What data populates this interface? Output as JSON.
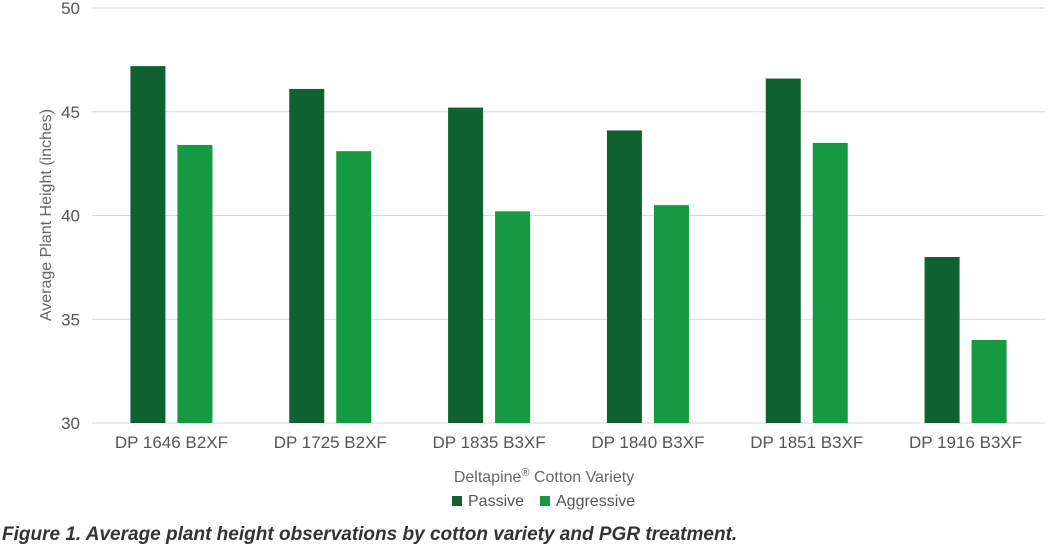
{
  "chart_data": {
    "type": "bar",
    "categories": [
      "DP 1646 B2XF",
      "DP 1725 B2XF",
      "DP 1835 B3XF",
      "DP 1840 B3XF",
      "DP 1851 B3XF",
      "DP 1916 B3XF"
    ],
    "series": [
      {
        "name": "Passive",
        "color": "#0f6230",
        "values": [
          47.2,
          46.1,
          45.2,
          44.1,
          46.6,
          38.0
        ]
      },
      {
        "name": "Aggressive",
        "color": "#159a41",
        "values": [
          43.4,
          43.1,
          40.2,
          40.5,
          43.5,
          34.0
        ]
      }
    ],
    "ylim": [
      30,
      50
    ],
    "yticks": [
      "30",
      "35",
      "40",
      "45",
      "50"
    ],
    "ylabel": "Average Plant Height (inches)",
    "xlabel": "Deltapine",
    "xlabel_sup": "®",
    "xlabel_rest": " Cotton Variety",
    "grid": true,
    "legend_position": "bottom"
  },
  "caption": "Figure 1. Average plant height observations by cotton variety and PGR treatment."
}
